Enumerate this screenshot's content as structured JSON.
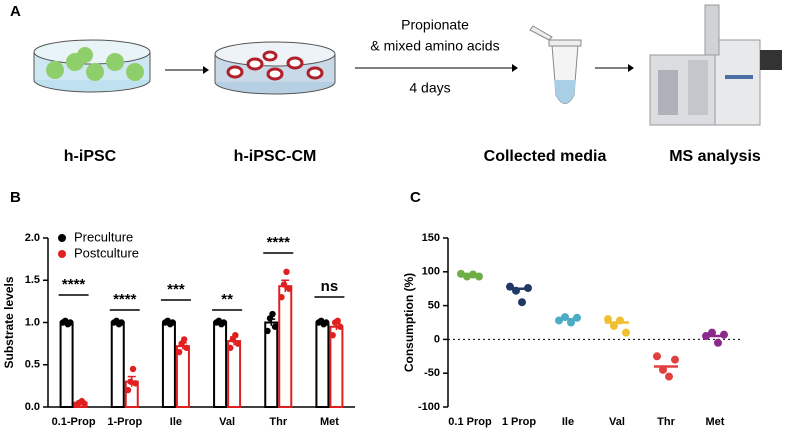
{
  "panel_a": {
    "label": "A",
    "treatment": [
      "Propionate",
      "& mixed amino acids"
    ],
    "duration": "4 days",
    "steps": [
      "h-iPSC",
      "h-iPSC-CM",
      "Collected media",
      "MS analysis"
    ]
  },
  "chart_data": [
    {
      "type": "bar",
      "panel": "B",
      "ylabel": "Substrate levels",
      "categories": [
        "0.1-Prop",
        "1-Prop",
        "Ile",
        "Val",
        "Thr",
        "Met"
      ],
      "series": [
        {
          "name": "Preculture",
          "color": "#000000",
          "values": [
            1.0,
            1.0,
            1.0,
            1.0,
            1.0,
            1.0
          ],
          "errors": [
            0.01,
            0.01,
            0.01,
            0.01,
            0.04,
            0.01
          ],
          "points": [
            [
              1.0,
              1.02,
              0.98,
              1.0
            ],
            [
              1.0,
              1.02,
              0.98,
              1.0
            ],
            [
              1.0,
              1.02,
              0.98,
              1.0
            ],
            [
              1.0,
              1.02,
              0.98,
              1.0
            ],
            [
              0.9,
              1.05,
              1.1,
              0.95
            ],
            [
              1.0,
              1.02,
              0.98,
              1.0
            ]
          ]
        },
        {
          "name": "Postculture",
          "color": "#e02020",
          "values": [
            0.05,
            0.3,
            0.72,
            0.78,
            1.43,
            0.95
          ],
          "errors": [
            0.02,
            0.06,
            0.04,
            0.05,
            0.07,
            0.04
          ],
          "points": [
            [
              0.03,
              0.05,
              0.07,
              0.04
            ],
            [
              0.2,
              0.3,
              0.45,
              0.28
            ],
            [
              0.65,
              0.75,
              0.8,
              0.7
            ],
            [
              0.7,
              0.8,
              0.85,
              0.75
            ],
            [
              1.3,
              1.45,
              1.6,
              1.4
            ],
            [
              0.85,
              1.0,
              1.02,
              0.95
            ]
          ]
        }
      ],
      "annotations": [
        "****",
        "****",
        "***",
        "**",
        "****",
        "ns"
      ],
      "ylim": [
        0,
        2
      ],
      "yticks": [
        {
          "value": 0,
          "label": "0.0"
        },
        0.5,
        {
          "value": 1,
          "label": "1.0"
        },
        1.5,
        {
          "value": 2,
          "label": "2.0"
        }
      ],
      "legend": "upper left"
    },
    {
      "type": "strip",
      "panel": "C",
      "ylabel": "Consumption (%)",
      "categories": [
        "0.1 Prop",
        "1 Prop",
        "Ile",
        "Val",
        "Thr",
        "Met"
      ],
      "colors": [
        "#70ad47",
        "#1f3864",
        "#4bacc6",
        "#f0c030",
        "#e04040",
        "#8b2a8b"
      ],
      "values": [
        95,
        75,
        30,
        25,
        -40,
        5
      ],
      "points": [
        [
          97,
          93,
          96,
          93
        ],
        [
          78,
          72,
          55,
          76
        ],
        [
          28,
          33,
          25,
          32
        ],
        [
          30,
          20,
          28,
          10
        ],
        [
          -25,
          -45,
          -55,
          -30
        ],
        [
          5,
          10,
          -5,
          7
        ]
      ],
      "reference_line": 0,
      "ylim": [
        -100,
        150
      ],
      "yticks": [
        -100,
        -50,
        0,
        50,
        100,
        150
      ]
    }
  ]
}
